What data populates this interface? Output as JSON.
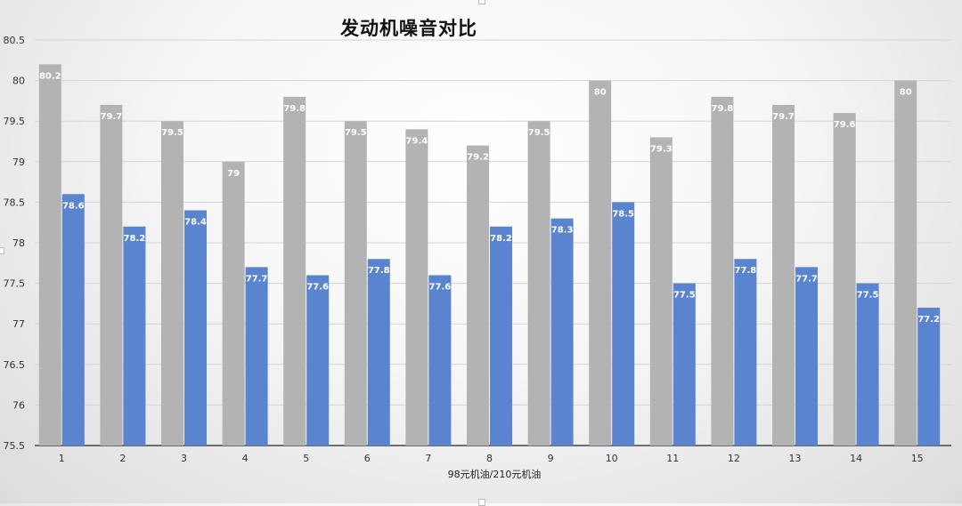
{
  "chart_data": {
    "type": "bar",
    "title": "发动机噪音对比",
    "xlabel": "98元机油/210元机油",
    "ylabel": "",
    "ylim": [
      75.5,
      80.5
    ],
    "yticks": [
      "75.5",
      "76",
      "76.5",
      "77",
      "77.5",
      "78",
      "78.5",
      "79",
      "79.5",
      "80",
      "80.5"
    ],
    "grid": true,
    "categories": [
      "1",
      "2",
      "3",
      "4",
      "5",
      "6",
      "7",
      "8",
      "9",
      "10",
      "11",
      "12",
      "13",
      "14",
      "15"
    ],
    "series": [
      {
        "values": [
          80.2,
          79.7,
          79.5,
          79,
          79.8,
          79.5,
          79.4,
          79.2,
          79.5,
          80,
          79.3,
          79.8,
          79.7,
          79.6,
          80
        ],
        "labels": [
          "80.2",
          "79.7",
          "79.5",
          "79",
          "79.8",
          "79.5",
          "79.4",
          "79.2",
          "79.5",
          "80",
          "79.3",
          "79.8",
          "79.7",
          "79.6",
          "80"
        ],
        "color": "#b3b3b3"
      },
      {
        "values": [
          78.6,
          78.2,
          78.4,
          77.7,
          77.6,
          77.8,
          77.6,
          78.2,
          78.3,
          78.5,
          77.5,
          77.8,
          77.7,
          77.5,
          77.2
        ],
        "labels": [
          "78.6",
          "78.2",
          "78.4",
          "77.7",
          "77.6",
          "77.8",
          "77.6",
          "78.2",
          "78.3",
          "78.5",
          "77.5",
          "77.8",
          "77.7",
          "77.5",
          "77.2"
        ],
        "color": "#5b84d0"
      }
    ]
  }
}
